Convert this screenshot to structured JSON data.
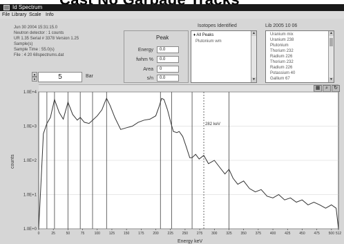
{
  "banner_text": "Cast No Garbage Tracks",
  "window": {
    "title": "Id Spectrum"
  },
  "menu": [
    "File",
    "Library",
    "Scale",
    "Info"
  ],
  "sample_info": [
    "Jun 30 2004 15:31:15.0",
    "Neutron detector : 1 counts",
    "UR 1.35 Serial # 3378 Version 1.25",
    "Sample(s)",
    "Sample Time : 55.0(s)",
    "File : 4 20 68spectrums.dat"
  ],
  "peak": {
    "title": "Peak",
    "rows": [
      {
        "label": "Energy",
        "value": "0.0"
      },
      {
        "label": "fwhm %",
        "value": "0.0"
      },
      {
        "label": "Area",
        "value": "0"
      },
      {
        "label": "s/n",
        "value": "0.0"
      }
    ]
  },
  "isotopes": {
    "title": "Isotopes Identified",
    "items": [
      "All Peaks",
      "Plutonium  wm"
    ]
  },
  "library": {
    "title": "Lib 2005 10 06",
    "items": [
      "Uranium mix",
      "Uranium 238",
      "Plutonium",
      "Thorium 232",
      "Radium 226",
      "Thorium 232",
      "Radium 226",
      "Potassium 40",
      "Gallium 67"
    ]
  },
  "spinner": {
    "value": "5",
    "label": "Bar"
  },
  "toolbar": {
    "buttons": [
      "grid-icon",
      "zoom-icon",
      "reset-icon"
    ]
  },
  "chart_data": {
    "type": "line",
    "title": "",
    "xlabel": "Energy keV",
    "ylabel": "counts",
    "xlim": [
      0,
      512
    ],
    "x_ticks": [
      0,
      25,
      50,
      75,
      100,
      125,
      150,
      175,
      200,
      225,
      250,
      275,
      300,
      325,
      350,
      375,
      400,
      425,
      450,
      475,
      500,
      512
    ],
    "yscale": "log",
    "ylim": [
      1,
      10000
    ],
    "y_tick_labels": [
      "1.0E+0",
      "1.0E+1",
      "1.0E+2",
      "1.0E+3",
      "1.0E+4"
    ],
    "cursor": {
      "x": 282,
      "label": "282 keV"
    },
    "marker_lines": [
      14,
      27,
      50,
      71,
      92,
      116,
      208,
      227,
      262,
      325
    ],
    "series": [
      {
        "x": [
          0,
          3,
          8,
          14,
          20,
          27,
          35,
          42,
          50,
          58,
          66,
          71,
          78,
          86,
          94,
          100,
          108,
          114,
          116,
          122,
          130,
          140,
          150,
          160,
          170,
          180,
          190,
          200,
          205,
          210,
          214,
          220,
          226,
          230,
          236,
          240,
          246,
          252,
          258,
          262,
          268,
          274,
          282,
          290,
          300,
          310,
          318,
          325,
          332,
          340,
          350,
          360,
          370,
          380,
          390,
          400,
          410,
          420,
          430,
          440,
          450,
          460,
          470,
          480,
          490,
          500,
          508,
          512
        ],
        "y": [
          1,
          10,
          600,
          1200,
          1800,
          6000,
          2500,
          1600,
          5000,
          2200,
          1500,
          1800,
          1300,
          1200,
          1600,
          2000,
          3000,
          5500,
          6500,
          4000,
          1800,
          800,
          900,
          1000,
          1300,
          1500,
          1600,
          2000,
          3500,
          6500,
          6000,
          3000,
          1200,
          700,
          650,
          700,
          500,
          250,
          120,
          120,
          150,
          110,
          140,
          80,
          100,
          60,
          40,
          55,
          30,
          20,
          25,
          15,
          12,
          14,
          9,
          8,
          10,
          7,
          8,
          6,
          7,
          5,
          6,
          5,
          4,
          5,
          4,
          1
        ]
      }
    ]
  }
}
